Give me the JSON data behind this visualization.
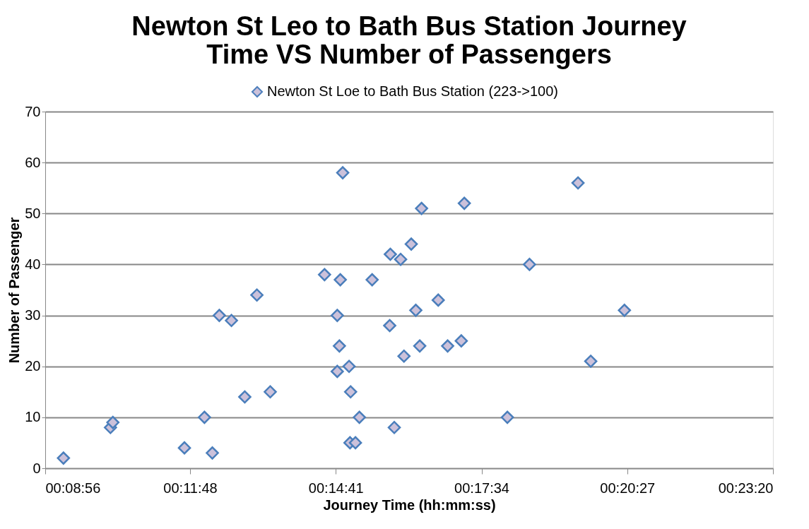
{
  "chart_data": {
    "type": "scatter",
    "title": [
      "Newton St Leo to Bath Bus Station Journey",
      "Time VS Number of Passengers"
    ],
    "xlabel": "Journey Time (hh:mm:ss)",
    "ylabel": "Number of Passenger",
    "x": [
      0.1549,
      0.1704,
      0.1712,
      0.1948,
      0.2014,
      0.204,
      0.2063,
      0.2103,
      0.2187,
      0.2147,
      0.2231,
      0.241,
      0.2462,
      0.247,
      0.2452,
      0.2459,
      0.2452,
      0.2491,
      0.2496,
      0.2525,
      0.2494,
      0.2512,
      0.2567,
      0.2627,
      0.2661,
      0.2696,
      0.273,
      0.2625,
      0.2711,
      0.2672,
      0.2724,
      0.2785,
      0.2816,
      0.2861,
      0.2871,
      0.264,
      0.3013,
      0.3086,
      0.3246,
      0.3288,
      0.3399
    ],
    "series": [
      {
        "name": "Newton St Loe to Bath Bus Station (223->100)",
        "color": "#ccc1da",
        "values": [
          2,
          8,
          9,
          4,
          10,
          3,
          30,
          29,
          34,
          14,
          15,
          38,
          37,
          58,
          30,
          24,
          19,
          20,
          15,
          10,
          5,
          5,
          37,
          42,
          41,
          44,
          51,
          28,
          31,
          22,
          24,
          33,
          24,
          25,
          52,
          8,
          10,
          40,
          56,
          21,
          31
        ]
      }
    ],
    "xlim": [
      0.148889,
      0.388889
    ],
    "xticks": [
      {
        "value": 0.148889,
        "label": "00:08:56"
      },
      {
        "value": 0.196667,
        "label": "00:11:48"
      },
      {
        "value": 0.244722,
        "label": "00:14:41"
      },
      {
        "value": 0.292778,
        "label": "00:17:34"
      },
      {
        "value": 0.340833,
        "label": "00:20:27"
      },
      {
        "value": 0.388889,
        "label": "00:23:20"
      }
    ],
    "ylim": [
      0,
      70
    ],
    "yticks": [
      0,
      10,
      20,
      30,
      40,
      50,
      60,
      70
    ],
    "grid": "y",
    "legend": "top",
    "marker": "diamond"
  }
}
